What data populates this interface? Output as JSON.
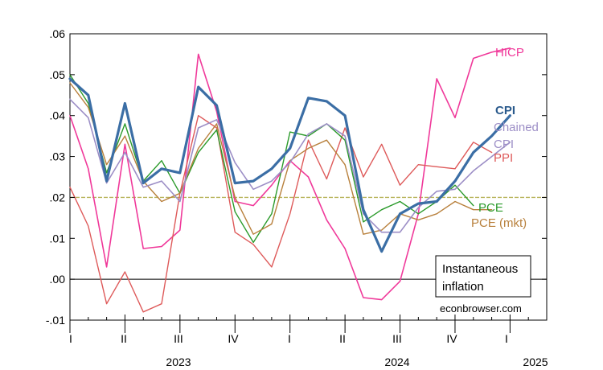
{
  "chart_data": {
    "type": "line",
    "title": "",
    "xlabel": "",
    "ylabel": "",
    "ylim": [
      -0.01,
      0.06
    ],
    "y_ticks": [
      ".06",
      ".05",
      ".04",
      ".03",
      ".02",
      ".01",
      ".00",
      "-.01"
    ],
    "y_tick_values": [
      0.06,
      0.05,
      0.04,
      0.03,
      0.02,
      0.01,
      0.0,
      -0.01
    ],
    "quarter_labels": [
      "I",
      "II",
      "III",
      "IV",
      "I",
      "II",
      "III",
      "IV",
      "I"
    ],
    "year_labels": [
      "2023",
      "2024",
      "2025"
    ],
    "reference_line": {
      "value": 0.02,
      "color": "#b7b35a"
    },
    "zero_line": {
      "value": 0.0,
      "color": "#000000"
    },
    "annotation_lines": [
      "Instantaneous",
      "inflation"
    ],
    "credit": "econbrowser.com",
    "x_domain": [
      1,
      27
    ],
    "series": [
      {
        "name": "HICP",
        "labels": [
          "HICP"
        ],
        "color": "#f0399a",
        "width": 1.6,
        "x": [
          1,
          2,
          3,
          4,
          5,
          6,
          7,
          8,
          9,
          10,
          11,
          12,
          13,
          14,
          15,
          16,
          17,
          18,
          19,
          20,
          21,
          22,
          23,
          24,
          25
        ],
        "values": [
          0.04,
          0.027,
          0.003,
          0.033,
          0.0075,
          0.008,
          0.012,
          0.055,
          0.041,
          0.019,
          0.018,
          0.023,
          0.029,
          0.025,
          0.0145,
          0.0075,
          -0.0045,
          -0.005,
          -0.0005,
          0.016,
          0.049,
          0.0395,
          0.054,
          0.0555,
          0.0565
        ]
      },
      {
        "name": "PPI",
        "labels": [
          "PPI"
        ],
        "color": "#de5a5a",
        "width": 1.4,
        "x": [
          1,
          2,
          3,
          4,
          5,
          6,
          7,
          8,
          9,
          10,
          11,
          12,
          13,
          14,
          15,
          16,
          17,
          18,
          19,
          20,
          21,
          22,
          23,
          24
        ],
        "values": [
          0.0225,
          0.013,
          -0.006,
          0.0018,
          -0.008,
          -0.006,
          0.021,
          0.04,
          0.037,
          0.0115,
          0.0085,
          0.003,
          0.016,
          0.034,
          0.0245,
          0.037,
          0.025,
          0.033,
          0.023,
          0.028,
          0.0275,
          0.027,
          0.0335,
          0.031
        ]
      },
      {
        "name": "PCE",
        "labels": [
          "PCE"
        ],
        "color": "#2a9a2a",
        "width": 1.4,
        "x": [
          1,
          2,
          3,
          4,
          5,
          6,
          7,
          8,
          9,
          10,
          11,
          12,
          13,
          14,
          15,
          16,
          17,
          18,
          19,
          20,
          21,
          22,
          23
        ],
        "values": [
          0.05,
          0.043,
          0.026,
          0.038,
          0.024,
          0.029,
          0.021,
          0.031,
          0.0365,
          0.0165,
          0.009,
          0.016,
          0.036,
          0.035,
          0.038,
          0.034,
          0.014,
          0.017,
          0.019,
          0.016,
          0.019,
          0.023,
          0.018
        ]
      },
      {
        "name": "PCE (mkt)",
        "labels": [
          "PCE (mkt)"
        ],
        "color": "#b8803c",
        "width": 1.4,
        "x": [
          1,
          2,
          3,
          4,
          5,
          6,
          7,
          8,
          9,
          10,
          11,
          12,
          13,
          14,
          15,
          16,
          17,
          18,
          19,
          20,
          21,
          22,
          23,
          24
        ],
        "values": [
          0.048,
          0.042,
          0.028,
          0.035,
          0.024,
          0.019,
          0.021,
          0.032,
          0.038,
          0.02,
          0.011,
          0.0135,
          0.029,
          0.032,
          0.034,
          0.028,
          0.011,
          0.012,
          0.016,
          0.0145,
          0.016,
          0.019,
          0.017,
          0.017
        ]
      },
      {
        "name": "Chained CPI",
        "labels": [
          "Chained",
          "CPI"
        ],
        "color": "#9c8ec6",
        "width": 1.6,
        "x": [
          1,
          2,
          3,
          4,
          5,
          6,
          7,
          8,
          9,
          10,
          11,
          12,
          13,
          14,
          15,
          16,
          17,
          18,
          19,
          20,
          21,
          22,
          23,
          24,
          25
        ],
        "values": [
          0.044,
          0.0395,
          0.0235,
          0.031,
          0.0225,
          0.024,
          0.019,
          0.037,
          0.039,
          0.0285,
          0.022,
          0.024,
          0.0285,
          0.0355,
          0.038,
          0.035,
          0.016,
          0.0115,
          0.0115,
          0.0175,
          0.0215,
          0.022,
          0.0265,
          0.03,
          0.0335
        ]
      },
      {
        "name": "CPI",
        "labels": [
          "CPI"
        ],
        "color": "#3b6ea5",
        "width": 3.2,
        "x": [
          1,
          2,
          3,
          4,
          5,
          6,
          7,
          8,
          9,
          10,
          11,
          12,
          13,
          14,
          15,
          16,
          17,
          18,
          19,
          20,
          21,
          22,
          23,
          24,
          25
        ],
        "values": [
          0.049,
          0.045,
          0.024,
          0.043,
          0.0235,
          0.027,
          0.026,
          0.047,
          0.0425,
          0.0235,
          0.024,
          0.027,
          0.032,
          0.0443,
          0.0435,
          0.04,
          0.017,
          0.0068,
          0.016,
          0.0185,
          0.019,
          0.024,
          0.031,
          0.035,
          0.04
        ]
      }
    ]
  }
}
